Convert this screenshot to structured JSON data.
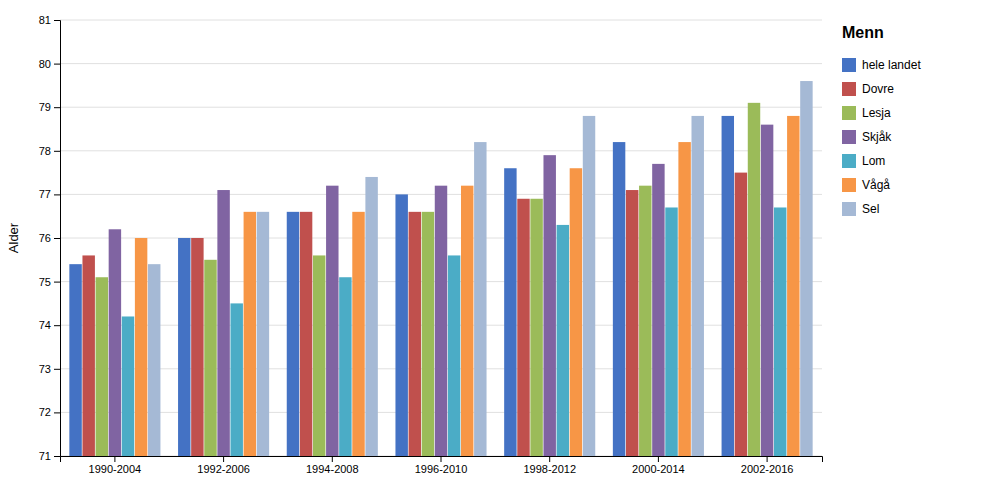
{
  "chart_data": {
    "type": "bar",
    "title": "Menn",
    "ylabel": "Alder",
    "categories": [
      "1990-2004",
      "1992-2006",
      "1994-2008",
      "1996-2010",
      "1998-2012",
      "2000-2014",
      "2002-2016"
    ],
    "series": [
      {
        "name": "hele landet",
        "color": "#4472C4",
        "values": [
          75.4,
          76.0,
          76.6,
          77.0,
          77.6,
          78.2,
          78.8
        ]
      },
      {
        "name": "Dovre",
        "color": "#C0504D",
        "values": [
          75.6,
          76.0,
          76.6,
          76.6,
          76.9,
          77.1,
          77.5
        ]
      },
      {
        "name": "Lesja",
        "color": "#9BBB59",
        "values": [
          75.1,
          75.5,
          75.6,
          76.6,
          76.9,
          77.2,
          79.1
        ]
      },
      {
        "name": "Skjåk",
        "color": "#8064A2",
        "values": [
          76.2,
          77.1,
          77.2,
          77.2,
          77.9,
          77.7,
          78.6
        ]
      },
      {
        "name": "Lom",
        "color": "#4BACC6",
        "values": [
          74.2,
          74.5,
          75.1,
          75.6,
          76.3,
          76.7,
          76.7
        ]
      },
      {
        "name": "Vågå",
        "color": "#F79646",
        "values": [
          76.0,
          76.6,
          76.6,
          77.2,
          77.6,
          78.2,
          78.8
        ]
      },
      {
        "name": "Sel",
        "color": "#A5B9D5",
        "values": [
          75.4,
          76.6,
          77.4,
          78.2,
          78.8,
          78.8,
          79.6
        ]
      }
    ],
    "ylim": [
      71,
      81
    ],
    "yticks": [
      71,
      72,
      73,
      74,
      75,
      76,
      77,
      78,
      79,
      80,
      81
    ],
    "grid": true,
    "legend": "right"
  }
}
